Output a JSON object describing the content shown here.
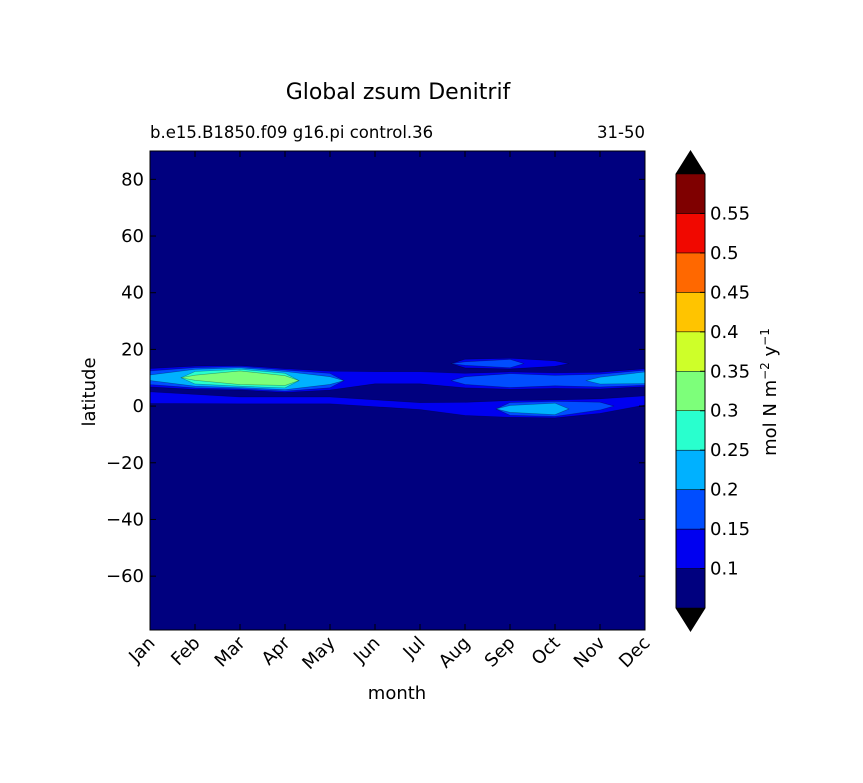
{
  "chart_data": {
    "type": "heatmap",
    "style": "filled-contour",
    "title": "Global zsum Denitrif",
    "subtitle_left": "b.e15.B1850.f09 g16.pi control.36",
    "subtitle_right": "31-50",
    "xlabel": "month",
    "ylabel": "latitude",
    "x_categories": [
      "Jan",
      "Feb",
      "Mar",
      "Apr",
      "May",
      "Jun",
      "Jul",
      "Aug",
      "Sep",
      "Oct",
      "Nov",
      "Dec"
    ],
    "xlim": [
      0.5,
      11.5
    ],
    "ylim": [
      -79,
      90
    ],
    "y_ticks": [
      80,
      60,
      40,
      20,
      0,
      -20,
      -40,
      -60
    ],
    "colorbar": {
      "label_text": "mol N m",
      "label_exp1": "−2",
      "label_mid": " y",
      "label_exp2": "−1",
      "extend": "both",
      "levels": [
        0.05,
        0.1,
        0.15,
        0.2,
        0.25,
        0.3,
        0.35,
        0.4,
        0.45,
        0.5,
        0.55,
        0.6
      ],
      "tick_values": [
        0.1,
        0.15,
        0.2,
        0.25,
        0.3,
        0.35,
        0.4,
        0.45,
        0.5,
        0.55
      ],
      "tick_labels": [
        "0.1",
        "0.15",
        "0.2",
        "0.25",
        "0.3",
        "0.35",
        "0.4",
        "0.45",
        "0.5",
        "0.55"
      ],
      "colors": [
        "#00007f",
        "#0000f0",
        "#004dff",
        "#00b1ff",
        "#29ffce",
        "#7dff7a",
        "#ceff29",
        "#ffc400",
        "#ff6800",
        "#f10800",
        "#7f0000"
      ],
      "under_color": "#000000",
      "over_color": "#000000"
    },
    "bands": [
      {
        "name": "northern band",
        "points": [
          {
            "month": 0.5,
            "lat": 10,
            "width": 4.5,
            "value": 0.21
          },
          {
            "month": 1.5,
            "lat": 10,
            "width": 5,
            "value": 0.31
          },
          {
            "month": 2.5,
            "lat": 10,
            "width": 5,
            "value": 0.39
          },
          {
            "month": 3.5,
            "lat": 9,
            "width": 5,
            "value": 0.34
          },
          {
            "month": 4.5,
            "lat": 9,
            "width": 4.5,
            "value": 0.22
          },
          {
            "month": 5.5,
            "lat": 10,
            "width": 4,
            "value": 0.14
          },
          {
            "month": 6.5,
            "lat": 10,
            "width": 4,
            "value": 0.14
          },
          {
            "month": 7.5,
            "lat": 9,
            "width": 4,
            "value": 0.17
          },
          {
            "month": 8.5,
            "lat": 9,
            "width": 4,
            "value": 0.24
          },
          {
            "month": 9.5,
            "lat": 9,
            "width": 4,
            "value": 0.19
          },
          {
            "month": 10.5,
            "lat": 9,
            "width": 4,
            "value": 0.22
          },
          {
            "month": 11.5,
            "lat": 10,
            "width": 4,
            "value": 0.27
          }
        ]
      },
      {
        "name": "equatorial band",
        "points": [
          {
            "month": 0.5,
            "lat": 3,
            "width": 5,
            "value": 0.12
          },
          {
            "month": 2.5,
            "lat": 2,
            "width": 4,
            "value": 0.11
          },
          {
            "month": 4.5,
            "lat": 2,
            "width": 4,
            "value": 0.11
          },
          {
            "month": 6.5,
            "lat": 0,
            "width": 4,
            "value": 0.11
          },
          {
            "month": 7.5,
            "lat": -1,
            "width": 4,
            "value": 0.15
          },
          {
            "month": 8.5,
            "lat": -1,
            "width": 4,
            "value": 0.22
          },
          {
            "month": 9.5,
            "lat": -1,
            "width": 4,
            "value": 0.27
          },
          {
            "month": 10.5,
            "lat": 0,
            "width": 4,
            "value": 0.17
          },
          {
            "month": 11.5,
            "lat": 2,
            "width": 4,
            "value": 0.12
          }
        ]
      },
      {
        "name": "band near 15N",
        "points": [
          {
            "month": 6.5,
            "lat": 15,
            "width": 2,
            "value": 0.08
          },
          {
            "month": 7.5,
            "lat": 15,
            "width": 2.5,
            "value": 0.16
          },
          {
            "month": 8.5,
            "lat": 15,
            "width": 2.5,
            "value": 0.23
          },
          {
            "month": 9.5,
            "lat": 15,
            "width": 2,
            "value": 0.13
          },
          {
            "month": 10.5,
            "lat": 14,
            "width": 2,
            "value": 0.07
          }
        ]
      },
      {
        "name": "band near 12S",
        "points": [
          {
            "month": 7.5,
            "lat": -11,
            "width": 1.5,
            "value": 0.08
          },
          {
            "month": 9.5,
            "lat": -12,
            "width": 1.5,
            "value": 0.1
          },
          {
            "month": 10.5,
            "lat": -12,
            "width": 1.5,
            "value": 0.08
          }
        ]
      },
      {
        "name": "band near 16S",
        "points": [
          {
            "month": 8.0,
            "lat": -16,
            "width": 1.5,
            "value": 0.07
          },
          {
            "month": 9.0,
            "lat": -16,
            "width": 1.5,
            "value": 0.08
          },
          {
            "month": 10.0,
            "lat": -16,
            "width": 1.5,
            "value": 0.07
          }
        ]
      }
    ]
  }
}
